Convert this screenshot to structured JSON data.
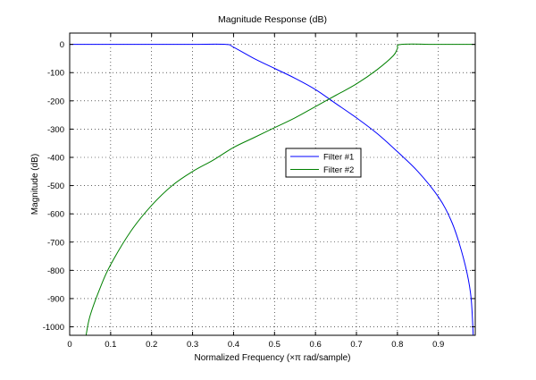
{
  "chart_data": {
    "type": "line",
    "title": "Magnitude Response (dB)",
    "xlabel": "Normalized Frequency (×π rad/sample)",
    "ylabel": "Magnitude (dB)",
    "xlim": [
      0,
      0.99
    ],
    "ylim": [
      -1030,
      40
    ],
    "x_ticks": [
      0,
      0.1,
      0.2,
      0.3,
      0.4,
      0.5,
      0.6,
      0.7,
      0.8,
      0.9
    ],
    "x_tick_labels": [
      "0",
      "0.1",
      "0.2",
      "0.3",
      "0.4",
      "0.5",
      "0.6",
      "0.7",
      "0.8",
      "0.9"
    ],
    "y_ticks": [
      0,
      -100,
      -200,
      -300,
      -400,
      -500,
      -600,
      -700,
      -800,
      -900,
      -1000
    ],
    "y_tick_labels": [
      "0",
      "-100",
      "-200",
      "-300",
      "-400",
      "-500",
      "-600",
      "-700",
      "-800",
      "-900",
      "-1000"
    ],
    "grid": true,
    "grid_style": "dotted",
    "legend_position": "center-right",
    "series": [
      {
        "name": "Filter #1",
        "color": "#0000ff",
        "x": [
          0,
          0.1,
          0.2,
          0.3,
          0.38,
          0.4,
          0.45,
          0.5,
          0.55,
          0.6,
          0.65,
          0.7,
          0.75,
          0.8,
          0.85,
          0.9,
          0.93,
          0.95,
          0.97,
          0.98,
          0.985
        ],
        "y": [
          0,
          0,
          0,
          0,
          0,
          -10,
          -50,
          -85,
          -120,
          -160,
          -210,
          -260,
          -315,
          -380,
          -450,
          -540,
          -620,
          -700,
          -810,
          -900,
          -1030
        ]
      },
      {
        "name": "Filter #2",
        "color": "#008000",
        "x": [
          0.04,
          0.05,
          0.075,
          0.1,
          0.15,
          0.2,
          0.25,
          0.3,
          0.35,
          0.4,
          0.45,
          0.5,
          0.55,
          0.6,
          0.65,
          0.7,
          0.75,
          0.79,
          0.8,
          0.81,
          0.9,
          0.99
        ],
        "y": [
          -1030,
          -960,
          -860,
          -780,
          -660,
          -570,
          -500,
          -450,
          -410,
          -365,
          -330,
          -295,
          -260,
          -220,
          -180,
          -140,
          -90,
          -40,
          -15,
          0,
          0,
          0
        ]
      }
    ]
  }
}
